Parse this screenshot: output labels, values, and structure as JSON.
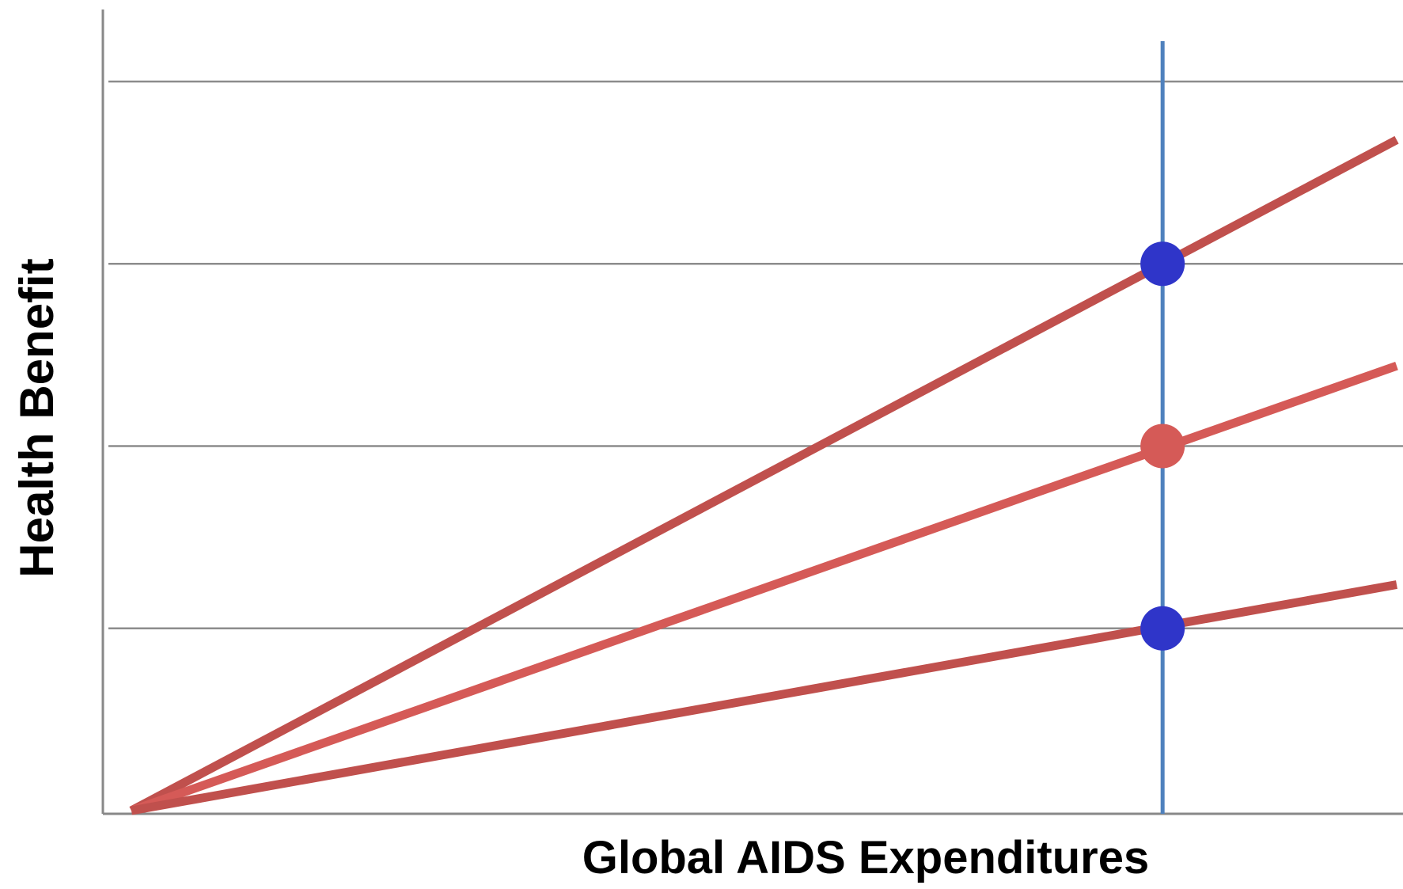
{
  "chart_data": {
    "type": "line",
    "title": "",
    "xlabel": "Global AIDS Expenditures",
    "ylabel": "Health Benefit",
    "xlim": [
      0,
      100
    ],
    "ylim": [
      0,
      100
    ],
    "grid": true,
    "gridlines_y": [
      25,
      50,
      75,
      100
    ],
    "series": [
      {
        "x": [
          0,
          100
        ],
        "y": [
          0,
          92
        ],
        "color": "#c0504d"
      },
      {
        "x": [
          0,
          100
        ],
        "y": [
          0,
          61
        ],
        "color": "#d55a57"
      },
      {
        "x": [
          0,
          100
        ],
        "y": [
          0,
          31
        ],
        "color": "#c0504d"
      }
    ],
    "reference_line": {
      "x": 81.5,
      "color": "#4f81bd"
    },
    "markers": [
      {
        "x": 81.5,
        "y": 75,
        "color": "#2f35c9"
      },
      {
        "x": 81.5,
        "y": 50,
        "color": "#d55a57"
      },
      {
        "x": 81.5,
        "y": 25,
        "color": "#2f35c9"
      }
    ]
  }
}
